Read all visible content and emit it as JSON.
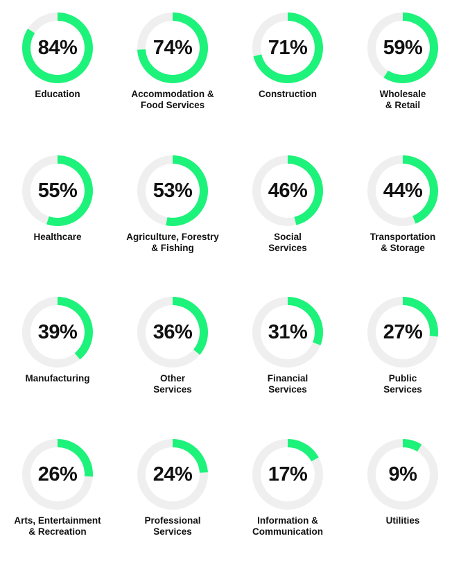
{
  "chart_data": {
    "type": "pie",
    "style": "donut",
    "colors": {
      "filled": "#1DF27A",
      "track": "#EFEFEF",
      "text": "#111111"
    },
    "items": [
      {
        "category": [
          "Education"
        ],
        "value": 84,
        "label": "84%"
      },
      {
        "category": [
          "Accommodation &",
          "Food Services"
        ],
        "value": 74,
        "label": "74%"
      },
      {
        "category": [
          "Construction"
        ],
        "value": 71,
        "label": "71%"
      },
      {
        "category": [
          "Wholesale",
          "& Retail"
        ],
        "value": 59,
        "label": "59%"
      },
      {
        "category": [
          "Healthcare"
        ],
        "value": 55,
        "label": "55%"
      },
      {
        "category": [
          "Agriculture, Forestry",
          "& Fishing"
        ],
        "value": 53,
        "label": "53%"
      },
      {
        "category": [
          "Social",
          "Services"
        ],
        "value": 46,
        "label": "46%"
      },
      {
        "category": [
          "Transportation",
          "& Storage"
        ],
        "value": 44,
        "label": "44%"
      },
      {
        "category": [
          "Manufacturing"
        ],
        "value": 39,
        "label": "39%"
      },
      {
        "category": [
          "Other",
          "Services"
        ],
        "value": 36,
        "label": "36%"
      },
      {
        "category": [
          "Financial",
          "Services"
        ],
        "value": 31,
        "label": "31%"
      },
      {
        "category": [
          "Public",
          "Services"
        ],
        "value": 27,
        "label": "27%"
      },
      {
        "category": [
          "Arts, Entertainment",
          "& Recreation"
        ],
        "value": 26,
        "label": "26%"
      },
      {
        "category": [
          "Professional",
          "Services"
        ],
        "value": 24,
        "label": "24%"
      },
      {
        "category": [
          "Information &",
          "Communication"
        ],
        "value": 17,
        "label": "17%"
      },
      {
        "category": [
          "Utilities"
        ],
        "value": 9,
        "label": "9%"
      }
    ]
  }
}
